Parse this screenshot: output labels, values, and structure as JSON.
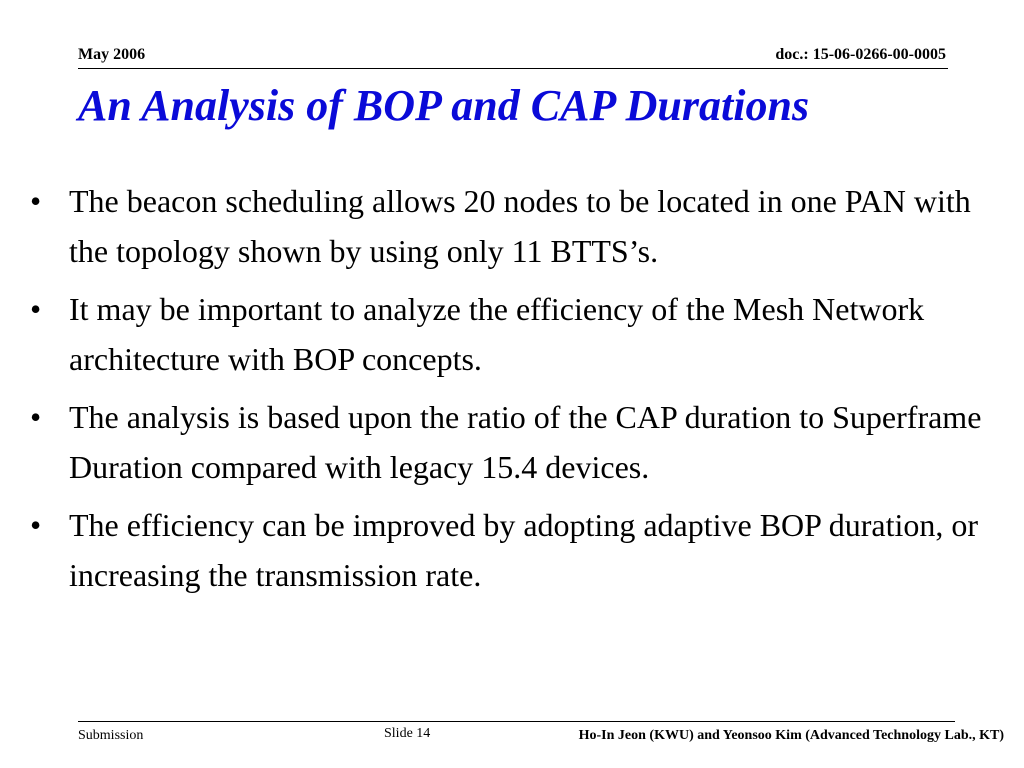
{
  "header": {
    "date": "May 2006",
    "doc": "doc.: 15-06-0266-00-0005"
  },
  "title": "An Analysis of BOP and CAP Durations",
  "bullets": [
    "The beacon scheduling allows 20 nodes to be located in one PAN with the topology shown by using only 11 BTTS’s.",
    "It may be important to analyze the efficiency of the Mesh Network architecture with BOP concepts.",
    "The analysis is based upon the ratio of the CAP duration to Superframe Duration compared with legacy 15.4 devices.",
    "The efficiency can be improved by adopting adaptive BOP duration, or increasing the transmission rate."
  ],
  "bullet_symbol": "•",
  "footer": {
    "left": "Submission",
    "center": "Slide 14",
    "right": "Ho-In Jeon (KWU) and Yeonsoo Kim (Advanced Technology Lab., KT)"
  },
  "colors": {
    "title": "#0a0ad8",
    "text": "#000000",
    "background": "#ffffff"
  }
}
